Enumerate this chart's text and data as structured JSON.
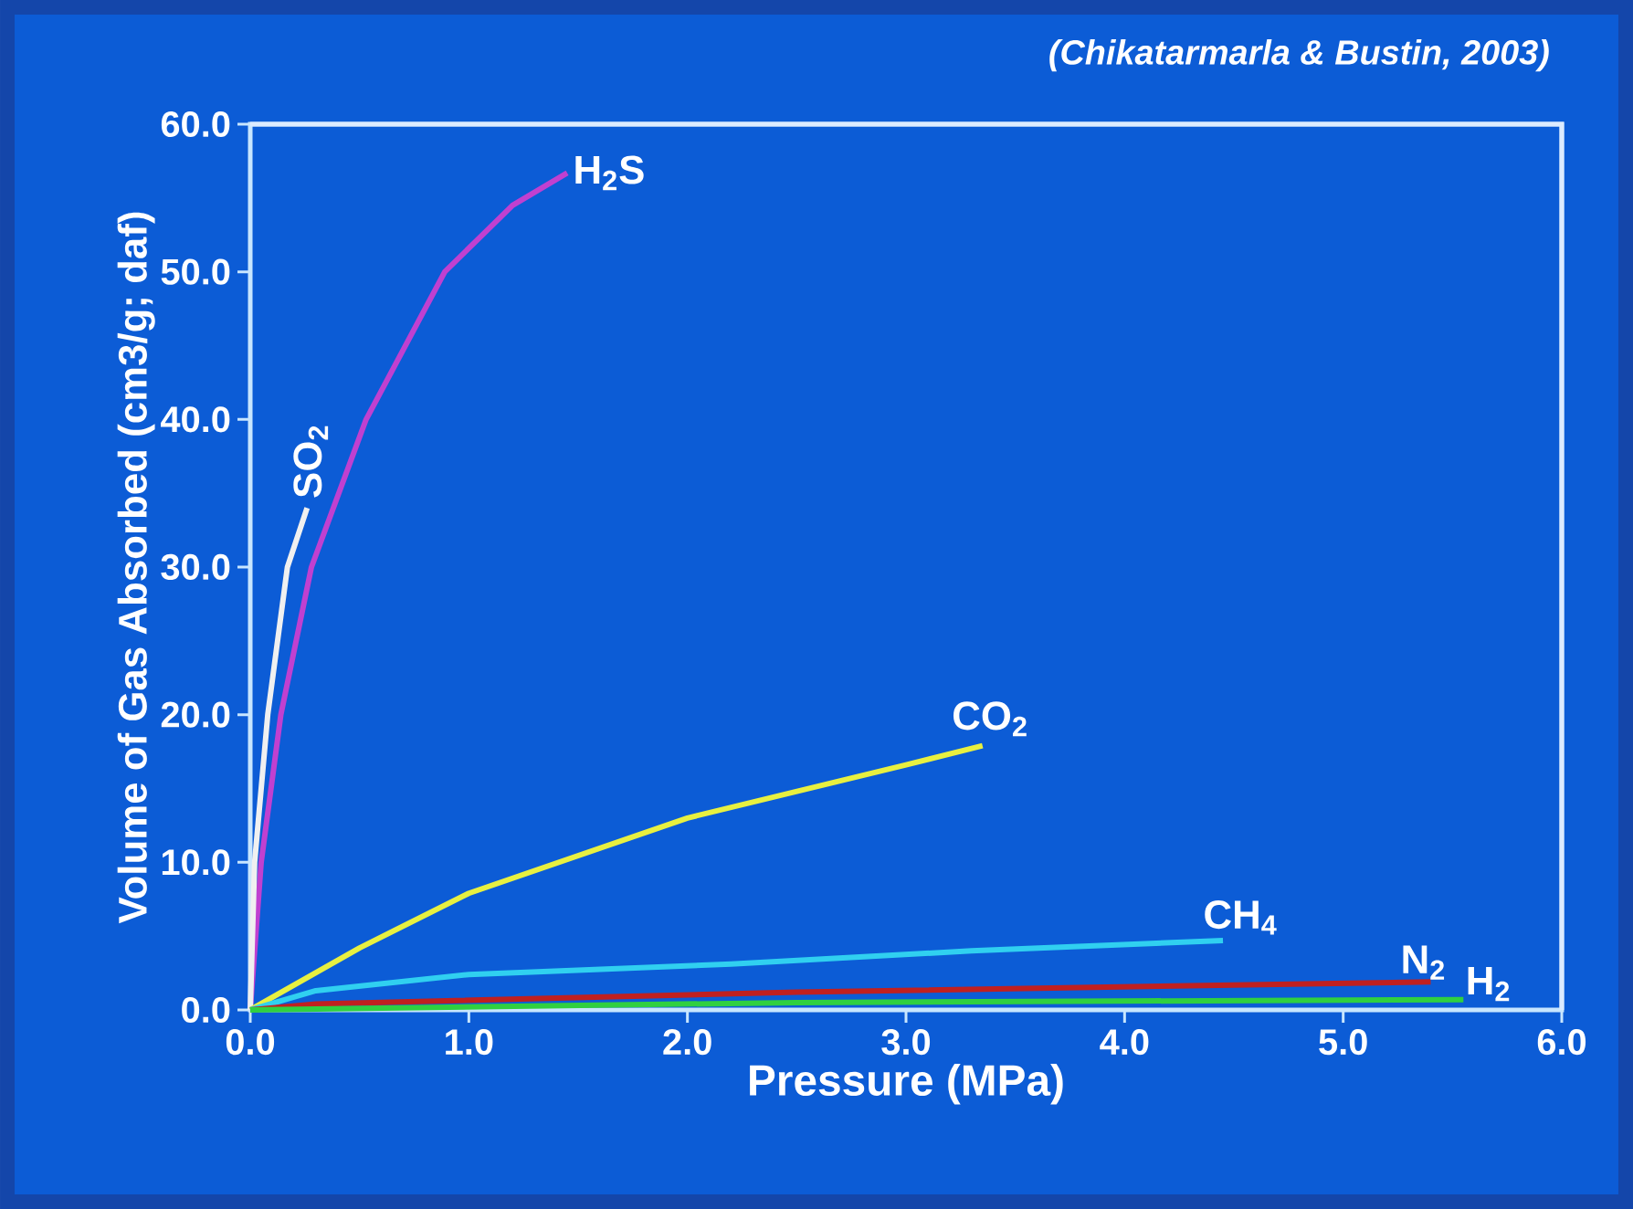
{
  "chart_data": {
    "type": "line",
    "xlabel": "Pressure (MPa)",
    "ylabel": "Volume of Gas Absorbed (cm3/g; daf)",
    "annotations": [
      "(Chikatarmarla & Bustin, 2003)"
    ],
    "xlim": [
      0,
      6
    ],
    "ylim": [
      0,
      60
    ],
    "xticks": [
      {
        "value": 0,
        "label": "0.0"
      },
      {
        "value": 1,
        "label": "1.0"
      },
      {
        "value": 2,
        "label": "2.0"
      },
      {
        "value": 3,
        "label": "3.0"
      },
      {
        "value": 4,
        "label": "4.0"
      },
      {
        "value": 5,
        "label": "5.0"
      },
      {
        "value": 6,
        "label": "6.0"
      }
    ],
    "yticks": [
      {
        "value": 0,
        "label": "0.0"
      },
      {
        "value": 10,
        "label": "10.0"
      },
      {
        "value": 20,
        "label": "20.0"
      },
      {
        "value": 30,
        "label": "30.0"
      },
      {
        "value": 40,
        "label": "40.0"
      },
      {
        "value": 50,
        "label": "50.0"
      },
      {
        "value": 60,
        "label": "60.0"
      }
    ],
    "series": [
      {
        "name": "H$_{2}$S",
        "color": "#c040d0",
        "x": [
          0,
          0.05,
          0.14,
          0.28,
          0.53,
          0.89,
          1.2,
          1.45
        ],
        "values": [
          0,
          10,
          20,
          30,
          40,
          50,
          54.5,
          56.7
        ]
      },
      {
        "name": "SO$_{2}$",
        "color": "#f0f0f0",
        "x": [
          0,
          0.02,
          0.08,
          0.17,
          0.26
        ],
        "values": [
          0,
          10,
          20,
          30,
          34
        ]
      },
      {
        "name": "CO$_{2}$",
        "color": "#e8f040",
        "x": [
          0,
          0.5,
          1,
          2,
          3,
          3.35
        ],
        "values": [
          0,
          4.2,
          7.9,
          13,
          16.6,
          17.9
        ]
      },
      {
        "name": "CH$_{4}$",
        "color": "#30d0f0",
        "x": [
          0,
          0.3,
          1,
          2.2,
          3.3,
          4.45
        ],
        "values": [
          0,
          1.3,
          2.4,
          3.1,
          4,
          4.7
        ]
      },
      {
        "name": "N$_{2}$",
        "color": "#c02020",
        "x": [
          0,
          0.3,
          2.5,
          5.4
        ],
        "values": [
          0,
          0.4,
          1.2,
          1.9
        ]
      },
      {
        "name": "H$_{2}$",
        "color": "#30d040",
        "x": [
          0,
          2.5,
          5.55
        ],
        "values": [
          0,
          0.5,
          0.7
        ]
      }
    ]
  }
}
